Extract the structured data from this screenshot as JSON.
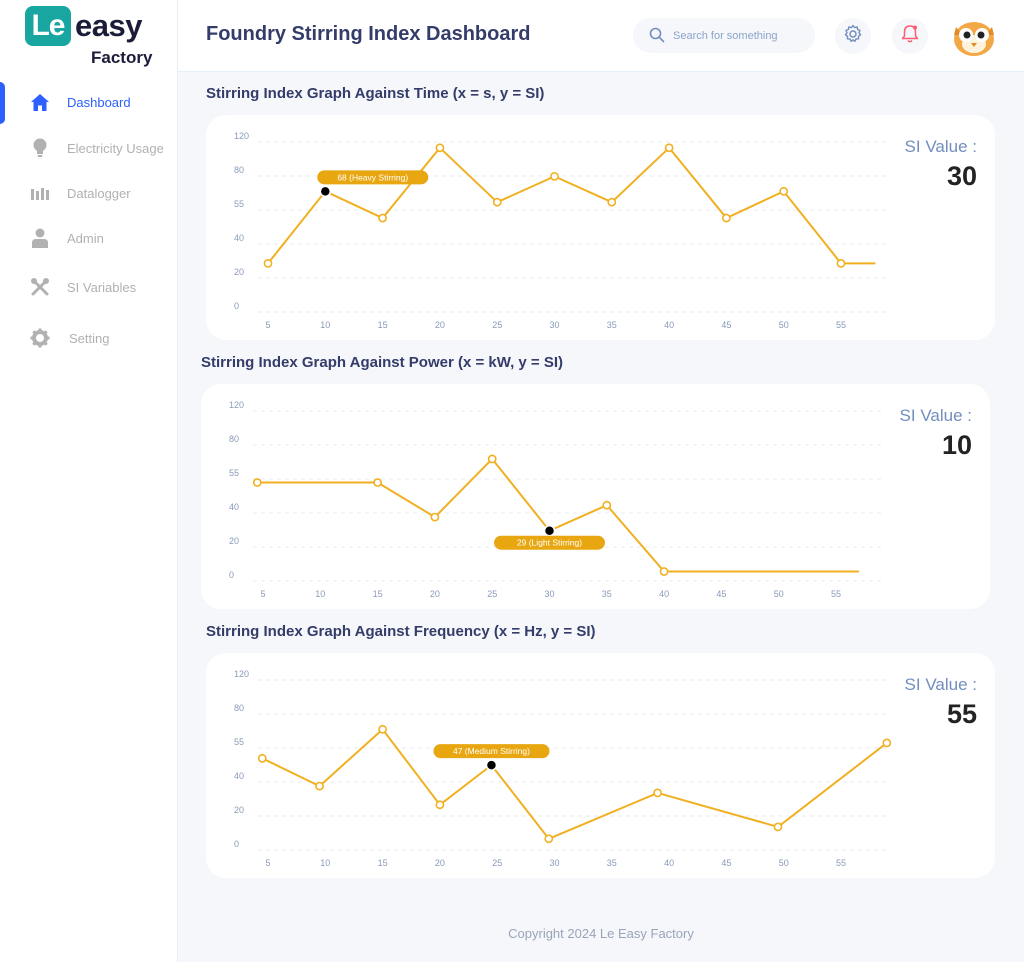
{
  "brand": {
    "logo_mark": "Le",
    "logo_word": "easy",
    "logo_sub": "Factory"
  },
  "sidebar": {
    "items": [
      {
        "label": "Dashboard",
        "icon": "home-icon",
        "active": true
      },
      {
        "label": "Electricity Usage",
        "icon": "lightbulb-icon",
        "active": false
      },
      {
        "label": "Datalogger",
        "icon": "bar-chart-icon",
        "active": false
      },
      {
        "label": "Admin",
        "icon": "user-icon",
        "active": false
      },
      {
        "label": "SI Variables",
        "icon": "tools-icon",
        "active": false
      },
      {
        "label": "Setting",
        "icon": "gear-icon",
        "active": false
      }
    ]
  },
  "header": {
    "title": "Foundry Stirring Index Dashboard",
    "search_placeholder": "Search for something"
  },
  "colors": {
    "accent": "#2d60ff",
    "series": "#f0b020",
    "tooltip": "#e8a711",
    "brand": "#1aa6a0"
  },
  "cards": [
    {
      "title": "Stirring Index Graph Against Time (x = s, y = SI)",
      "si_label": "SI Value :",
      "si_value": "30",
      "tooltip": "68 (Heavy Stirring)"
    },
    {
      "title": "Stirring Index Graph Against Power (x = kW, y = SI)",
      "si_label": "SI Value :",
      "si_value": "10",
      "tooltip": "29 (Light Stirring)"
    },
    {
      "title": "Stirring Index Graph Against Frequency (x = Hz, y = SI)",
      "si_label": "SI Value :",
      "si_value": "55",
      "tooltip": "47 (Medium Stirring)"
    }
  ],
  "chart_data": [
    {
      "type": "line",
      "title": "Stirring Index Graph Against Time (x = s, y = SI)",
      "x_ticks": [
        "5",
        "10",
        "15",
        "20",
        "25",
        "30",
        "35",
        "40",
        "45",
        "50",
        "55"
      ],
      "y_ticks": [
        "120",
        "80",
        "55",
        "40",
        "20",
        "0"
      ],
      "x": [
        5,
        10,
        15,
        20,
        25,
        30,
        35,
        40,
        45,
        50,
        55,
        58
      ],
      "y": [
        28,
        68,
        51,
        112,
        60,
        79,
        60,
        112,
        51,
        68,
        28,
        28
      ],
      "highlight_index": 1,
      "grid": true
    },
    {
      "type": "line",
      "title": "Stirring Index Graph Against Power (x = kW, y = SI)",
      "x_ticks": [
        "5",
        "10",
        "15",
        "20",
        "25",
        "30",
        "35",
        "40",
        "45",
        "50",
        "55"
      ],
      "y_ticks": [
        "120",
        "80",
        "55",
        "40",
        "20",
        "0"
      ],
      "x": [
        4.5,
        15,
        20,
        25,
        30,
        35,
        40,
        57
      ],
      "y": [
        53,
        53,
        37,
        69,
        29,
        43,
        5,
        5
      ],
      "highlight_index": 4,
      "grid": true
    },
    {
      "type": "line",
      "title": "Stirring Index Graph Against Frequency (x = Hz, y = SI)",
      "x_ticks": [
        "5",
        "10",
        "15",
        "20",
        "25",
        "30",
        "35",
        "40",
        "45",
        "50",
        "55"
      ],
      "y_ticks": [
        "120",
        "80",
        "55",
        "40",
        "20",
        "0"
      ],
      "x": [
        4.5,
        9.5,
        15,
        20,
        24.5,
        29.5,
        39,
        49.5,
        59
      ],
      "y": [
        50,
        37,
        68,
        26,
        47,
        6,
        33,
        13,
        58
      ],
      "highlight_index": 4,
      "grid": true
    }
  ],
  "footer": {
    "text": "Copyright 2024 Le Easy Factory"
  }
}
